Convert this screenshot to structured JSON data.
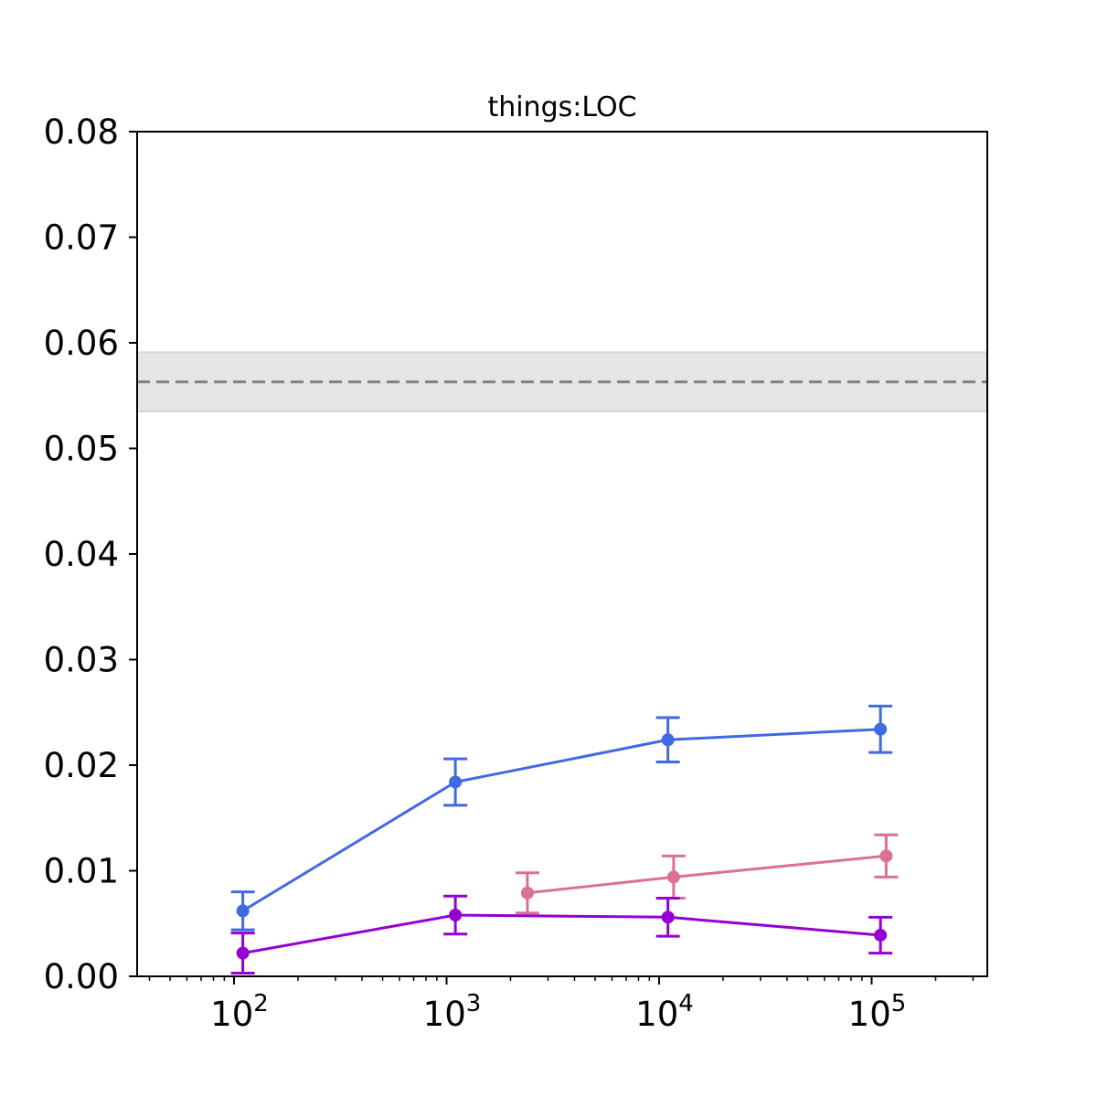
{
  "chart_data": {
    "type": "line",
    "title": "things:LOC",
    "xlabel": "",
    "ylabel": "",
    "x_scale": "log",
    "xlim": [
      35,
      350000
    ],
    "ylim": [
      0,
      0.08
    ],
    "grid": false,
    "y_ticks": [
      0.0,
      0.01,
      0.02,
      0.03,
      0.04,
      0.05,
      0.06,
      0.07,
      0.08
    ],
    "y_tick_labels": [
      "0.00",
      "0.01",
      "0.02",
      "0.03",
      "0.04",
      "0.05",
      "0.06",
      "0.07",
      "0.08"
    ],
    "x_ticks": [
      {
        "value": 100,
        "base": "10",
        "exp": "2"
      },
      {
        "value": 1000,
        "base": "10",
        "exp": "3"
      },
      {
        "value": 10000,
        "base": "10",
        "exp": "4"
      },
      {
        "value": 100000,
        "base": "10",
        "exp": "5"
      }
    ],
    "reference": {
      "value": 0.0563,
      "band": [
        0.0535,
        0.0591
      ],
      "line_color": "#808080",
      "band_color": "#e5e5e5"
    },
    "series": [
      {
        "color": "#4169e1",
        "points": [
          {
            "x": 110,
            "y": 0.0062,
            "err": 0.0018
          },
          {
            "x": 1100,
            "y": 0.0184,
            "err": 0.0022
          },
          {
            "x": 11000,
            "y": 0.0224,
            "err": 0.0021
          },
          {
            "x": 110000,
            "y": 0.0234,
            "err": 0.0022
          }
        ]
      },
      {
        "color": "#db7093",
        "points": [
          {
            "x": 2400,
            "y": 0.0079,
            "err": 0.0019
          },
          {
            "x": 11700,
            "y": 0.0094,
            "err": 0.002
          },
          {
            "x": 117000,
            "y": 0.0114,
            "err": 0.002
          }
        ]
      },
      {
        "color": "#9400d3",
        "points": [
          {
            "x": 110,
            "y": 0.0022,
            "err": 0.0019
          },
          {
            "x": 1100,
            "y": 0.0058,
            "err": 0.0018
          },
          {
            "x": 11000,
            "y": 0.0056,
            "err": 0.0018
          },
          {
            "x": 110000,
            "y": 0.0039,
            "err": 0.0017
          }
        ]
      }
    ]
  }
}
